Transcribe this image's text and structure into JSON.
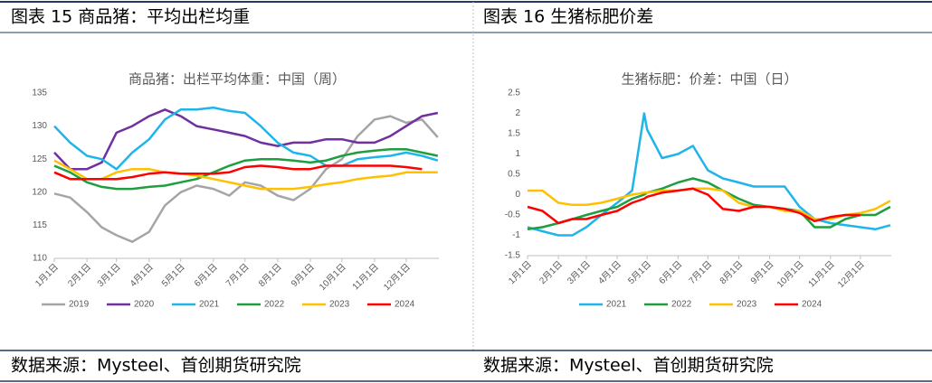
{
  "panels": [
    {
      "heading": "图表 15 商品猪：平均出栏均重",
      "source": "数据来源：Mysteel、首创期货研究院"
    },
    {
      "heading": "图表 16 生猪标肥价差",
      "source": "数据来源：Mysteel、首创期货研究院"
    }
  ],
  "chart_data": [
    {
      "type": "line",
      "title": "商品猪：出栏平均体重：中国（周）",
      "x": [
        1,
        16,
        32,
        46,
        60,
        75,
        91,
        106,
        121,
        136,
        152,
        167,
        182,
        197,
        213,
        228,
        244,
        259,
        274,
        289,
        305,
        320,
        335,
        350,
        365
      ],
      "xlim": [
        1,
        366
      ],
      "xticks": [
        {
          "value": 1,
          "label": "1月1日"
        },
        {
          "value": 32,
          "label": "2月1日"
        },
        {
          "value": 60,
          "label": "3月1日"
        },
        {
          "value": 91,
          "label": "4月1日"
        },
        {
          "value": 121,
          "label": "5月1日"
        },
        {
          "value": 152,
          "label": "6月1日"
        },
        {
          "value": 182,
          "label": "7月1日"
        },
        {
          "value": 213,
          "label": "8月1日"
        },
        {
          "value": 244,
          "label": "9月1日"
        },
        {
          "value": 274,
          "label": "10月1日"
        },
        {
          "value": 305,
          "label": "11月1日"
        },
        {
          "value": 335,
          "label": "12月1日"
        }
      ],
      "ylim": [
        110,
        135
      ],
      "yticks": [
        110,
        115,
        120,
        125,
        130,
        135
      ],
      "grid": false,
      "legend": "bottom",
      "series": [
        {
          "name": "2019",
          "color": "#a5a5a5",
          "values": [
            119.8,
            119.2,
            117,
            114.7,
            113.5,
            112.5,
            114,
            118,
            120,
            121,
            120.5,
            119.5,
            121.5,
            121,
            119.5,
            118.8,
            120.5,
            123.5,
            125,
            128.5,
            131,
            131.5,
            130.5,
            131,
            128.3
          ]
        },
        {
          "name": "2020",
          "color": "#7030a0",
          "values": [
            126,
            123.5,
            123.5,
            124.5,
            129,
            130,
            131.5,
            132.5,
            131.5,
            130,
            129.5,
            129,
            128.5,
            127.5,
            127,
            127.5,
            127.5,
            128,
            128,
            127.5,
            127.5,
            128.5,
            130,
            131.5,
            132
          ]
        },
        {
          "name": "2021",
          "color": "#1fb5ea",
          "values": [
            130,
            127.5,
            125.5,
            125,
            123.5,
            126,
            128,
            131,
            132.5,
            132.5,
            132.8,
            132.3,
            132,
            130,
            127.5,
            126,
            125.5,
            124,
            124,
            125,
            125.3,
            125.5,
            126,
            125.5,
            124.8
          ]
        },
        {
          "name": "2022",
          "color": "#1e9e3e",
          "values": [
            124,
            123,
            121.5,
            120.8,
            120.5,
            120.5,
            120.8,
            121,
            121.5,
            122,
            123,
            124,
            124.8,
            125,
            125,
            124.8,
            124.5,
            124.8,
            125.5,
            126,
            126.3,
            126.5,
            126.5,
            126,
            125.5
          ]
        },
        {
          "name": "2023",
          "color": "#ffc000",
          "values": [
            124.8,
            123.5,
            122,
            122,
            123,
            123.5,
            123.5,
            123,
            122.8,
            122.5,
            122,
            121.5,
            121,
            120.5,
            120.5,
            120.5,
            120.8,
            121.2,
            121.5,
            122,
            122.3,
            122.5,
            123,
            123,
            123
          ]
        },
        {
          "name": "2024",
          "color": "#ff0000",
          "values": [
            123,
            122,
            122,
            122,
            122,
            122.3,
            122.8,
            123,
            122.8,
            122.8,
            122.8,
            123,
            123.8,
            124,
            123.8,
            123.5,
            123.5,
            124,
            124,
            124,
            124,
            124,
            123.8,
            123.5,
            null
          ]
        }
      ]
    },
    {
      "type": "line",
      "title": "生猪标肥：价差：中国（日）",
      "x": [
        1,
        16,
        32,
        46,
        60,
        75,
        91,
        106,
        118,
        121,
        136,
        152,
        167,
        182,
        197,
        213,
        228,
        244,
        259,
        274,
        289,
        305,
        320,
        335,
        350,
        365
      ],
      "xlim": [
        1,
        366
      ],
      "xticks": [
        {
          "value": 1,
          "label": "1月1日"
        },
        {
          "value": 32,
          "label": "2月1日"
        },
        {
          "value": 60,
          "label": "3月1日"
        },
        {
          "value": 91,
          "label": "4月1日"
        },
        {
          "value": 121,
          "label": "5月1日"
        },
        {
          "value": 152,
          "label": "6月1日"
        },
        {
          "value": 182,
          "label": "7月1日"
        },
        {
          "value": 213,
          "label": "8月1日"
        },
        {
          "value": 244,
          "label": "9月1日"
        },
        {
          "value": 274,
          "label": "10月1日"
        },
        {
          "value": 305,
          "label": "11月1日"
        },
        {
          "value": 335,
          "label": "12月1日"
        }
      ],
      "ylim": [
        -1.5,
        2.5
      ],
      "yticks": [
        -1.5,
        -1,
        -0.5,
        0,
        0.5,
        1,
        1.5,
        2,
        2.5
      ],
      "grid": false,
      "legend": "bottom",
      "series": [
        {
          "name": "2021",
          "color": "#1fb5ea",
          "values": [
            -0.8,
            -0.9,
            -1.0,
            -1.0,
            -0.8,
            -0.5,
            -0.2,
            0.1,
            2.0,
            1.6,
            0.9,
            1.0,
            1.2,
            0.6,
            0.4,
            0.3,
            0.2,
            0.2,
            0.2,
            -0.3,
            -0.6,
            -0.7,
            -0.75,
            -0.8,
            -0.85,
            -0.75
          ]
        },
        {
          "name": "2022",
          "color": "#1e9e3e",
          "values": [
            -0.85,
            -0.8,
            -0.7,
            -0.6,
            -0.5,
            -0.4,
            -0.3,
            -0.1,
            0,
            0.05,
            0.15,
            0.3,
            0.4,
            0.3,
            0.1,
            -0.1,
            -0.25,
            -0.3,
            -0.35,
            -0.4,
            -0.8,
            -0.8,
            -0.6,
            -0.5,
            -0.5,
            -0.3
          ]
        },
        {
          "name": "2023",
          "color": "#ffc000",
          "values": [
            0.1,
            0.1,
            -0.2,
            -0.25,
            -0.25,
            -0.2,
            -0.1,
            0,
            0.05,
            0.05,
            0.1,
            0.1,
            0.15,
            0.15,
            0.1,
            -0.2,
            -0.3,
            -0.3,
            -0.4,
            -0.4,
            -0.6,
            -0.6,
            -0.5,
            -0.45,
            -0.35,
            -0.15
          ]
        },
        {
          "name": "2024",
          "color": "#ff0000",
          "values": [
            -0.3,
            -0.4,
            -0.7,
            -0.6,
            -0.6,
            -0.5,
            -0.4,
            -0.2,
            -0.1,
            -0.05,
            0.05,
            0.1,
            0.15,
            0,
            -0.35,
            -0.4,
            -0.3,
            -0.3,
            -0.35,
            -0.45,
            -0.65,
            -0.55,
            -0.5,
            -0.5,
            null,
            null
          ]
        }
      ]
    }
  ]
}
